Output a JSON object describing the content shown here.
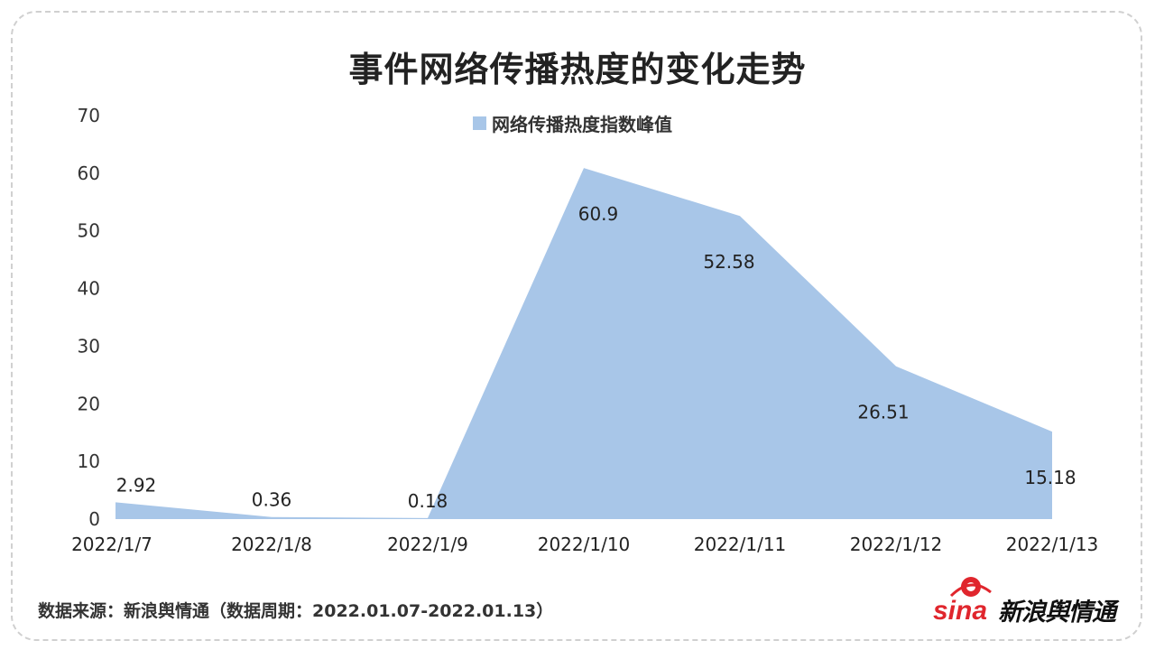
{
  "title": "事件网络传播热度的变化走势",
  "legend_label": "网络传播热度指数峰值",
  "source_text": "数据来源：新浪舆情通（数据周期：2022.01.07-2022.01.13）",
  "logo": {
    "brand": "sina",
    "text": "新浪舆情通"
  },
  "colors": {
    "area": "#a8c6e8",
    "text": "#222222"
  },
  "chart_data": {
    "type": "area",
    "title": "事件网络传播热度的变化走势",
    "categories": [
      "2022/1/7",
      "2022/1/8",
      "2022/1/9",
      "2022/1/10",
      "2022/1/11",
      "2022/1/12",
      "2022/1/13"
    ],
    "series": [
      {
        "name": "网络传播热度指数峰值",
        "values": [
          2.92,
          0.36,
          0.18,
          60.9,
          52.58,
          26.51,
          15.18
        ]
      }
    ],
    "data_labels": [
      "2.92",
      "0.36",
      "0.18",
      "60.9",
      "52.58",
      "26.51",
      "15.18"
    ],
    "yticks": [
      "0",
      "10",
      "20",
      "30",
      "40",
      "50",
      "60",
      "70"
    ],
    "ylim": [
      0,
      70
    ],
    "grid": false,
    "legend_position": "top-center"
  }
}
